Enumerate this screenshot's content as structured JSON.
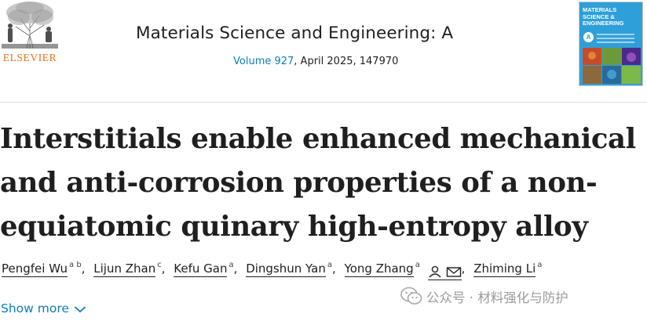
{
  "header": {
    "publisher_word": "ELSEVIER",
    "journal_title": "Materials Science and Engineering: A",
    "volume_link": "Volume 927",
    "issue_details": ", April 2025, 147970",
    "cover": {
      "title_lines": [
        "MATERIALS",
        "SCIENCE &",
        "ENGINEERING"
      ],
      "badge_letter": "A",
      "background_color": "#2f9fd9"
    }
  },
  "article": {
    "title_lines": [
      "Interstitials enable enhanced mechanical",
      "and anti-corrosion properties of a non-",
      "equiatomic quinary high-entropy alloy"
    ]
  },
  "authors": [
    {
      "name": "Pengfei Wu",
      "affiliations": "a b"
    },
    {
      "name": "Lijun Zhan",
      "affiliations": "c"
    },
    {
      "name": "Kefu Gan",
      "affiliations": "a"
    },
    {
      "name": "Dingshun Yan",
      "affiliations": "a"
    },
    {
      "name": "Yong Zhang",
      "affiliations": "a",
      "icons": [
        "person-icon",
        "envelope-icon"
      ]
    },
    {
      "name": "Zhiming Li",
      "affiliations": "a"
    }
  ],
  "show_more": {
    "label": "Show more",
    "icon": "chevron-down-icon"
  },
  "watermark": {
    "icon": "wechat-icon",
    "text": "公众号 · 材料强化与防护"
  },
  "colors": {
    "link": "#0c7dbb",
    "publisher_orange": "#e9711c",
    "text": "#1f1f1f"
  }
}
